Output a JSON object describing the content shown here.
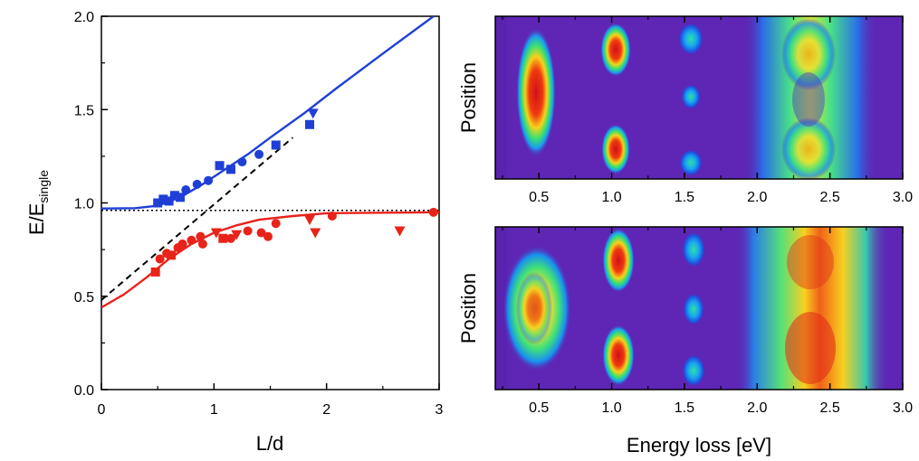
{
  "chart_data": [
    {
      "type": "scatter",
      "xlabel": "L/d",
      "ylabel_main": "E/E",
      "ylabel_sub": "single",
      "xlim": [
        0,
        3
      ],
      "ylim": [
        0,
        2.0
      ],
      "x_ticks": [
        "0",
        "1",
        "2",
        "3"
      ],
      "y_ticks": [
        "0.0",
        "0.5",
        "1.0",
        "1.5",
        "2.0"
      ],
      "colors": {
        "upper": "#1f3fd6",
        "lower": "#e8231a",
        "asymptote": "#000000"
      },
      "series": [
        {
          "points": [
            {
              "x": 0.5,
              "y": 1.0,
              "marker": "square"
            },
            {
              "x": 0.55,
              "y": 1.02,
              "marker": "square"
            },
            {
              "x": 0.6,
              "y": 1.01,
              "marker": "square"
            },
            {
              "x": 0.65,
              "y": 1.04,
              "marker": "square"
            },
            {
              "x": 0.7,
              "y": 1.03,
              "marker": "square"
            },
            {
              "x": 0.75,
              "y": 1.07,
              "marker": "circle"
            },
            {
              "x": 0.85,
              "y": 1.1,
              "marker": "circle"
            },
            {
              "x": 0.95,
              "y": 1.12,
              "marker": "circle"
            },
            {
              "x": 1.05,
              "y": 1.2,
              "marker": "square"
            },
            {
              "x": 1.15,
              "y": 1.18,
              "marker": "square"
            },
            {
              "x": 1.25,
              "y": 1.22,
              "marker": "circle"
            },
            {
              "x": 1.4,
              "y": 1.26,
              "marker": "circle"
            },
            {
              "x": 1.55,
              "y": 1.31,
              "marker": "square"
            },
            {
              "x": 1.85,
              "y": 1.42,
              "marker": "square"
            },
            {
              "x": 1.88,
              "y": 1.48,
              "marker": "triangle-down"
            }
          ],
          "fit": [
            [
              0,
              0.97
            ],
            [
              0.3,
              0.972
            ],
            [
              0.5,
              0.985
            ],
            [
              0.7,
              1.03
            ],
            [
              0.9,
              1.1
            ],
            [
              1.1,
              1.18
            ],
            [
              1.3,
              1.26
            ],
            [
              1.5,
              1.35
            ],
            [
              1.8,
              1.48
            ],
            [
              2.1,
              1.62
            ],
            [
              2.5,
              1.8
            ],
            [
              2.95,
              2.0
            ]
          ]
        },
        {
          "points": [
            {
              "x": 0.48,
              "y": 0.63,
              "marker": "square"
            },
            {
              "x": 0.52,
              "y": 0.7,
              "marker": "circle"
            },
            {
              "x": 0.58,
              "y": 0.73,
              "marker": "circle"
            },
            {
              "x": 0.62,
              "y": 0.72,
              "marker": "square"
            },
            {
              "x": 0.68,
              "y": 0.76,
              "marker": "circle"
            },
            {
              "x": 0.72,
              "y": 0.78,
              "marker": "circle"
            },
            {
              "x": 0.8,
              "y": 0.8,
              "marker": "circle"
            },
            {
              "x": 0.88,
              "y": 0.82,
              "marker": "circle"
            },
            {
              "x": 0.9,
              "y": 0.78,
              "marker": "circle"
            },
            {
              "x": 1.02,
              "y": 0.84,
              "marker": "triangle-down"
            },
            {
              "x": 1.08,
              "y": 0.81,
              "marker": "square"
            },
            {
              "x": 1.15,
              "y": 0.81,
              "marker": "circle"
            },
            {
              "x": 1.2,
              "y": 0.83,
              "marker": "triangle-down"
            },
            {
              "x": 1.3,
              "y": 0.85,
              "marker": "circle"
            },
            {
              "x": 1.42,
              "y": 0.84,
              "marker": "circle"
            },
            {
              "x": 1.48,
              "y": 0.82,
              "marker": "circle"
            },
            {
              "x": 1.55,
              "y": 0.89,
              "marker": "circle"
            },
            {
              "x": 1.85,
              "y": 0.91,
              "marker": "triangle-down"
            },
            {
              "x": 1.9,
              "y": 0.84,
              "marker": "triangle-down"
            },
            {
              "x": 2.05,
              "y": 0.93,
              "marker": "circle"
            },
            {
              "x": 2.65,
              "y": 0.85,
              "marker": "triangle-down"
            },
            {
              "x": 2.95,
              "y": 0.95,
              "marker": "circle"
            }
          ],
          "fit": [
            [
              0,
              0.44
            ],
            [
              0.2,
              0.51
            ],
            [
              0.4,
              0.6
            ],
            [
              0.6,
              0.7
            ],
            [
              0.8,
              0.78
            ],
            [
              1.0,
              0.84
            ],
            [
              1.2,
              0.88
            ],
            [
              1.4,
              0.91
            ],
            [
              1.7,
              0.93
            ],
            [
              2.0,
              0.945
            ],
            [
              3.0,
              0.95
            ]
          ]
        }
      ],
      "asymptotes": [
        {
          "style": "dashed",
          "from": [
            0,
            0.48
          ],
          "to": [
            1.7,
            1.35
          ]
        },
        {
          "style": "dotted",
          "y": 0.96
        }
      ]
    },
    {
      "type": "heatmap",
      "ylabel": "Position",
      "xlim": [
        0.2,
        3.0
      ],
      "x_ticks": [
        "0.5",
        "1.0",
        "1.5",
        "2.0",
        "2.5",
        "3.0"
      ],
      "description_colormap": "rainbow (purple to red)",
      "peaks_eV": [
        0.5,
        1.05,
        1.55,
        2.35
      ]
    },
    {
      "type": "heatmap",
      "xlabel": "Energy loss [eV]",
      "ylabel": "Position",
      "xlim": [
        0.2,
        3.0
      ],
      "x_ticks": [
        "0.5",
        "1.0",
        "1.5",
        "2.0",
        "2.5",
        "3.0"
      ],
      "peaks_eV": [
        0.47,
        1.03,
        1.55,
        2.35
      ]
    }
  ]
}
